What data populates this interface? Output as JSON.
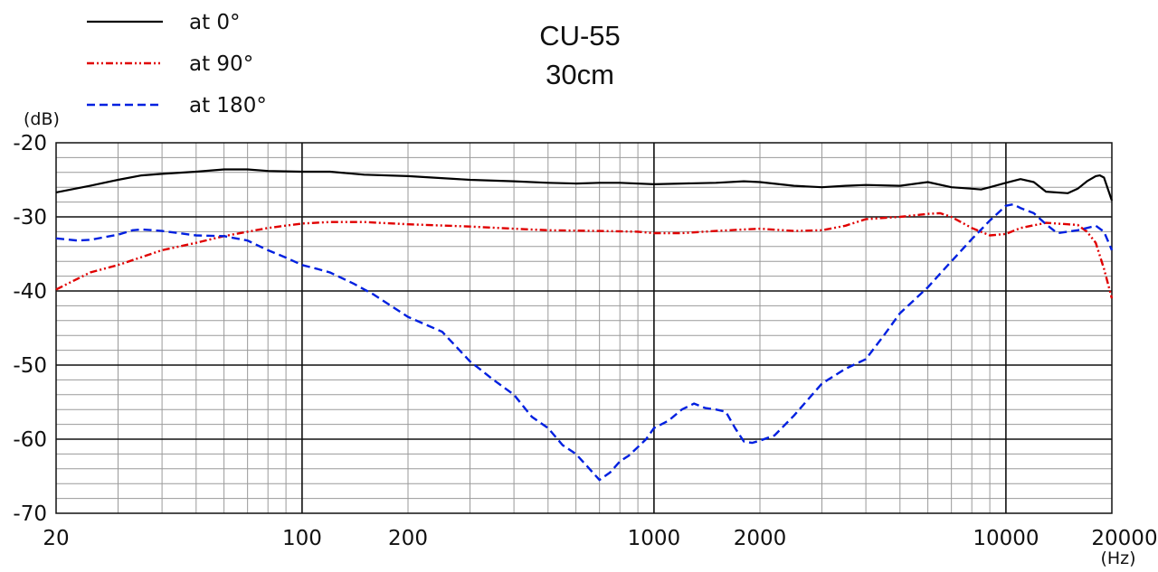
{
  "chart_data": {
    "type": "line",
    "title": "CU-55",
    "subtitle": "30cm",
    "xlabel": "(Hz)",
    "ylabel": "(dB)",
    "x_scale": "log",
    "xlim": [
      20,
      20000
    ],
    "ylim": [
      -70,
      -20
    ],
    "grid": true,
    "legend_position": "top-left",
    "x_ticks": [
      {
        "value": 20,
        "label": "20"
      },
      {
        "value": 100,
        "label": "100"
      },
      {
        "value": 200,
        "label": "200"
      },
      {
        "value": 1000,
        "label": "1000"
      },
      {
        "value": 2000,
        "label": "2000"
      },
      {
        "value": 10000,
        "label": "10000"
      },
      {
        "value": 20000,
        "label": "20000"
      }
    ],
    "y_ticks": [
      {
        "value": -20,
        "label": "-20"
      },
      {
        "value": -30,
        "label": "-30"
      },
      {
        "value": -40,
        "label": "-40"
      },
      {
        "value": -50,
        "label": "-50"
      },
      {
        "value": -60,
        "label": "-60"
      },
      {
        "value": -70,
        "label": "-70"
      }
    ],
    "series": [
      {
        "name": "at 0°",
        "color": "#000000",
        "style": "solid",
        "points": [
          [
            20,
            -26.7
          ],
          [
            25,
            -25.8
          ],
          [
            30,
            -25
          ],
          [
            35,
            -24.4
          ],
          [
            40,
            -24.2
          ],
          [
            50,
            -23.9
          ],
          [
            60,
            -23.6
          ],
          [
            70,
            -23.6
          ],
          [
            80,
            -23.8
          ],
          [
            100,
            -23.9
          ],
          [
            120,
            -23.9
          ],
          [
            150,
            -24.3
          ],
          [
            200,
            -24.5
          ],
          [
            300,
            -25
          ],
          [
            400,
            -25.2
          ],
          [
            500,
            -25.4
          ],
          [
            600,
            -25.5
          ],
          [
            700,
            -25.4
          ],
          [
            800,
            -25.4
          ],
          [
            1000,
            -25.6
          ],
          [
            1200,
            -25.5
          ],
          [
            1500,
            -25.4
          ],
          [
            1800,
            -25.2
          ],
          [
            2000,
            -25.3
          ],
          [
            2500,
            -25.8
          ],
          [
            3000,
            -26
          ],
          [
            3500,
            -25.8
          ],
          [
            4000,
            -25.7
          ],
          [
            5000,
            -25.8
          ],
          [
            6000,
            -25.3
          ],
          [
            7000,
            -26
          ],
          [
            8000,
            -26.2
          ],
          [
            8500,
            -26.3
          ],
          [
            9000,
            -26
          ],
          [
            10000,
            -25.4
          ],
          [
            11000,
            -24.9
          ],
          [
            12000,
            -25.3
          ],
          [
            13000,
            -26.6
          ],
          [
            15000,
            -26.8
          ],
          [
            16000,
            -26.2
          ],
          [
            17000,
            -25.2
          ],
          [
            18000,
            -24.5
          ],
          [
            18500,
            -24.4
          ],
          [
            19000,
            -24.7
          ],
          [
            20000,
            -27.8
          ]
        ]
      },
      {
        "name": "at 90°",
        "color": "#e00000",
        "style": "dash-dot-dot",
        "points": [
          [
            20,
            -39.8
          ],
          [
            25,
            -37.5
          ],
          [
            30,
            -36.5
          ],
          [
            40,
            -34.5
          ],
          [
            50,
            -33.5
          ],
          [
            60,
            -32.6
          ],
          [
            80,
            -31.5
          ],
          [
            100,
            -30.9
          ],
          [
            120,
            -30.7
          ],
          [
            150,
            -30.7
          ],
          [
            200,
            -31
          ],
          [
            300,
            -31.3
          ],
          [
            400,
            -31.6
          ],
          [
            500,
            -31.8
          ],
          [
            700,
            -31.9
          ],
          [
            900,
            -32
          ],
          [
            1000,
            -32.2
          ],
          [
            1200,
            -32.2
          ],
          [
            1500,
            -31.9
          ],
          [
            1800,
            -31.7
          ],
          [
            2000,
            -31.6
          ],
          [
            2500,
            -31.9
          ],
          [
            3000,
            -31.8
          ],
          [
            3500,
            -31.2
          ],
          [
            4000,
            -30.3
          ],
          [
            5000,
            -30
          ],
          [
            6000,
            -29.6
          ],
          [
            6500,
            -29.5
          ],
          [
            7000,
            -30
          ],
          [
            8000,
            -31.5
          ],
          [
            9000,
            -32.5
          ],
          [
            10000,
            -32.3
          ],
          [
            11000,
            -31.5
          ],
          [
            13000,
            -30.8
          ],
          [
            15000,
            -31
          ],
          [
            16000,
            -31.1
          ],
          [
            17000,
            -32
          ],
          [
            18000,
            -33.5
          ],
          [
            19000,
            -37
          ],
          [
            20000,
            -41
          ]
        ]
      },
      {
        "name": "at 180°",
        "color": "#0020e0",
        "style": "dashed",
        "points": [
          [
            20,
            -32.9
          ],
          [
            23,
            -33.2
          ],
          [
            25,
            -33.1
          ],
          [
            30,
            -32.4
          ],
          [
            33,
            -31.8
          ],
          [
            35,
            -31.7
          ],
          [
            40,
            -31.9
          ],
          [
            50,
            -32.5
          ],
          [
            60,
            -32.6
          ],
          [
            70,
            -33.2
          ],
          [
            80,
            -34.5
          ],
          [
            90,
            -35.5
          ],
          [
            100,
            -36.5
          ],
          [
            110,
            -37
          ],
          [
            120,
            -37.5
          ],
          [
            140,
            -39
          ],
          [
            160,
            -40.5
          ],
          [
            200,
            -43.5
          ],
          [
            250,
            -45.5
          ],
          [
            300,
            -49.5
          ],
          [
            350,
            -52
          ],
          [
            400,
            -54
          ],
          [
            450,
            -57
          ],
          [
            500,
            -58.5
          ],
          [
            550,
            -60.8
          ],
          [
            600,
            -62
          ],
          [
            650,
            -63.8
          ],
          [
            700,
            -65.5
          ],
          [
            750,
            -64.5
          ],
          [
            800,
            -63
          ],
          [
            850,
            -62.2
          ],
          [
            950,
            -60
          ],
          [
            1000,
            -58.5
          ],
          [
            1100,
            -57.5
          ],
          [
            1200,
            -56
          ],
          [
            1300,
            -55.2
          ],
          [
            1400,
            -55.8
          ],
          [
            1500,
            -56
          ],
          [
            1600,
            -56.3
          ],
          [
            1700,
            -58.5
          ],
          [
            1800,
            -60.3
          ],
          [
            1900,
            -60.5
          ],
          [
            2000,
            -60.2
          ],
          [
            2200,
            -59.5
          ],
          [
            2500,
            -56.8
          ],
          [
            3000,
            -52.5
          ],
          [
            3500,
            -50.5
          ],
          [
            4000,
            -49.2
          ],
          [
            4500,
            -46
          ],
          [
            5000,
            -43
          ],
          [
            6000,
            -39.5
          ],
          [
            7000,
            -36
          ],
          [
            8000,
            -33
          ],
          [
            9000,
            -30.5
          ],
          [
            10000,
            -28.5
          ],
          [
            10500,
            -28.3
          ],
          [
            11000,
            -28.8
          ],
          [
            12000,
            -29.5
          ],
          [
            13000,
            -31
          ],
          [
            14000,
            -32.2
          ],
          [
            15000,
            -32
          ],
          [
            16000,
            -31.8
          ],
          [
            17000,
            -31.5
          ],
          [
            18000,
            -31.2
          ],
          [
            19000,
            -32
          ],
          [
            20000,
            -34.5
          ]
        ]
      }
    ]
  }
}
